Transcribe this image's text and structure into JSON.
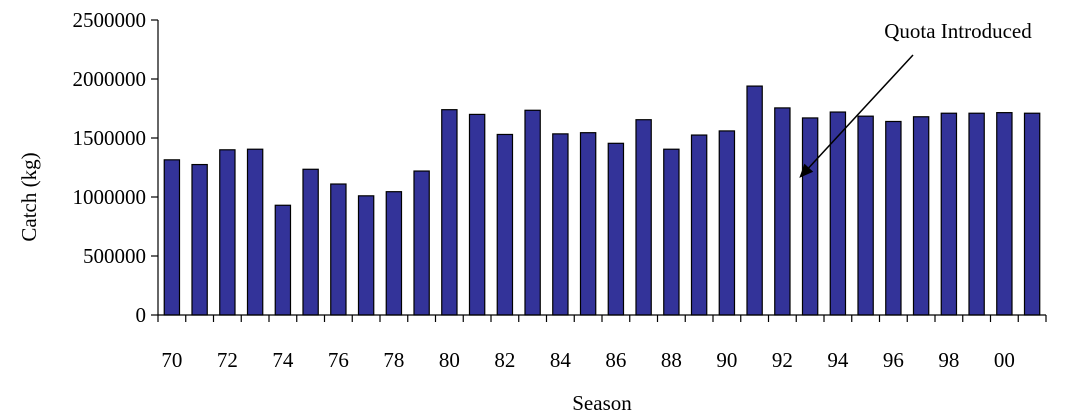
{
  "chart_data": {
    "type": "bar",
    "title": "",
    "xlabel": "Season",
    "ylabel": "Catch (kg)",
    "ylim": [
      0,
      2500000
    ],
    "yticks": [
      0,
      500000,
      1000000,
      1500000,
      2000000,
      2500000
    ],
    "grid": false,
    "bar_color": "#333399",
    "categories": [
      "70",
      "71",
      "72",
      "73",
      "74",
      "75",
      "76",
      "77",
      "78",
      "79",
      "80",
      "81",
      "82",
      "83",
      "84",
      "85",
      "86",
      "87",
      "88",
      "89",
      "90",
      "91",
      "92",
      "93",
      "94",
      "95",
      "96",
      "97",
      "98",
      "99",
      "00",
      "01"
    ],
    "x_tick_labels": [
      "70",
      "72",
      "74",
      "76",
      "78",
      "80",
      "82",
      "84",
      "86",
      "88",
      "90",
      "92",
      "94",
      "96",
      "98",
      "00"
    ],
    "values": [
      1315000,
      1275000,
      1400000,
      1405000,
      930000,
      1235000,
      1110000,
      1010000,
      1045000,
      1220000,
      1740000,
      1700000,
      1530000,
      1735000,
      1535000,
      1545000,
      1455000,
      1655000,
      1405000,
      1525000,
      1560000,
      1940000,
      1755000,
      1670000,
      1720000,
      1685000,
      1640000,
      1680000,
      1710000,
      1710000,
      1715000,
      1710000
    ],
    "annotations": [
      {
        "text": "Quota Introduced",
        "category": "93"
      }
    ]
  }
}
